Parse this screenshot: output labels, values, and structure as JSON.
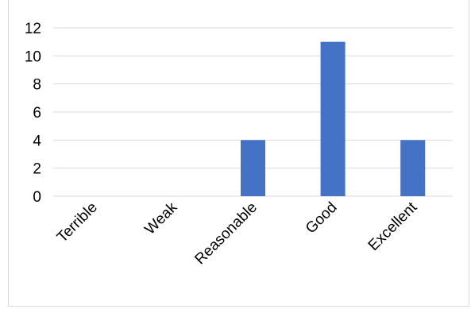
{
  "chart_data": {
    "type": "bar",
    "categories": [
      "Terrible",
      "Weak",
      "Reasonable",
      "Good",
      "Excellent"
    ],
    "values": [
      0,
      0,
      4,
      11,
      4
    ],
    "title": "",
    "xlabel": "",
    "ylabel": "",
    "ylim": [
      0,
      12
    ],
    "yticks": [
      "0",
      "2",
      "4",
      "6",
      "8",
      "10",
      "12"
    ],
    "grid": true,
    "legend": "none",
    "bar_color": "#4472C4",
    "grid_color": "#d9d9d9"
  }
}
